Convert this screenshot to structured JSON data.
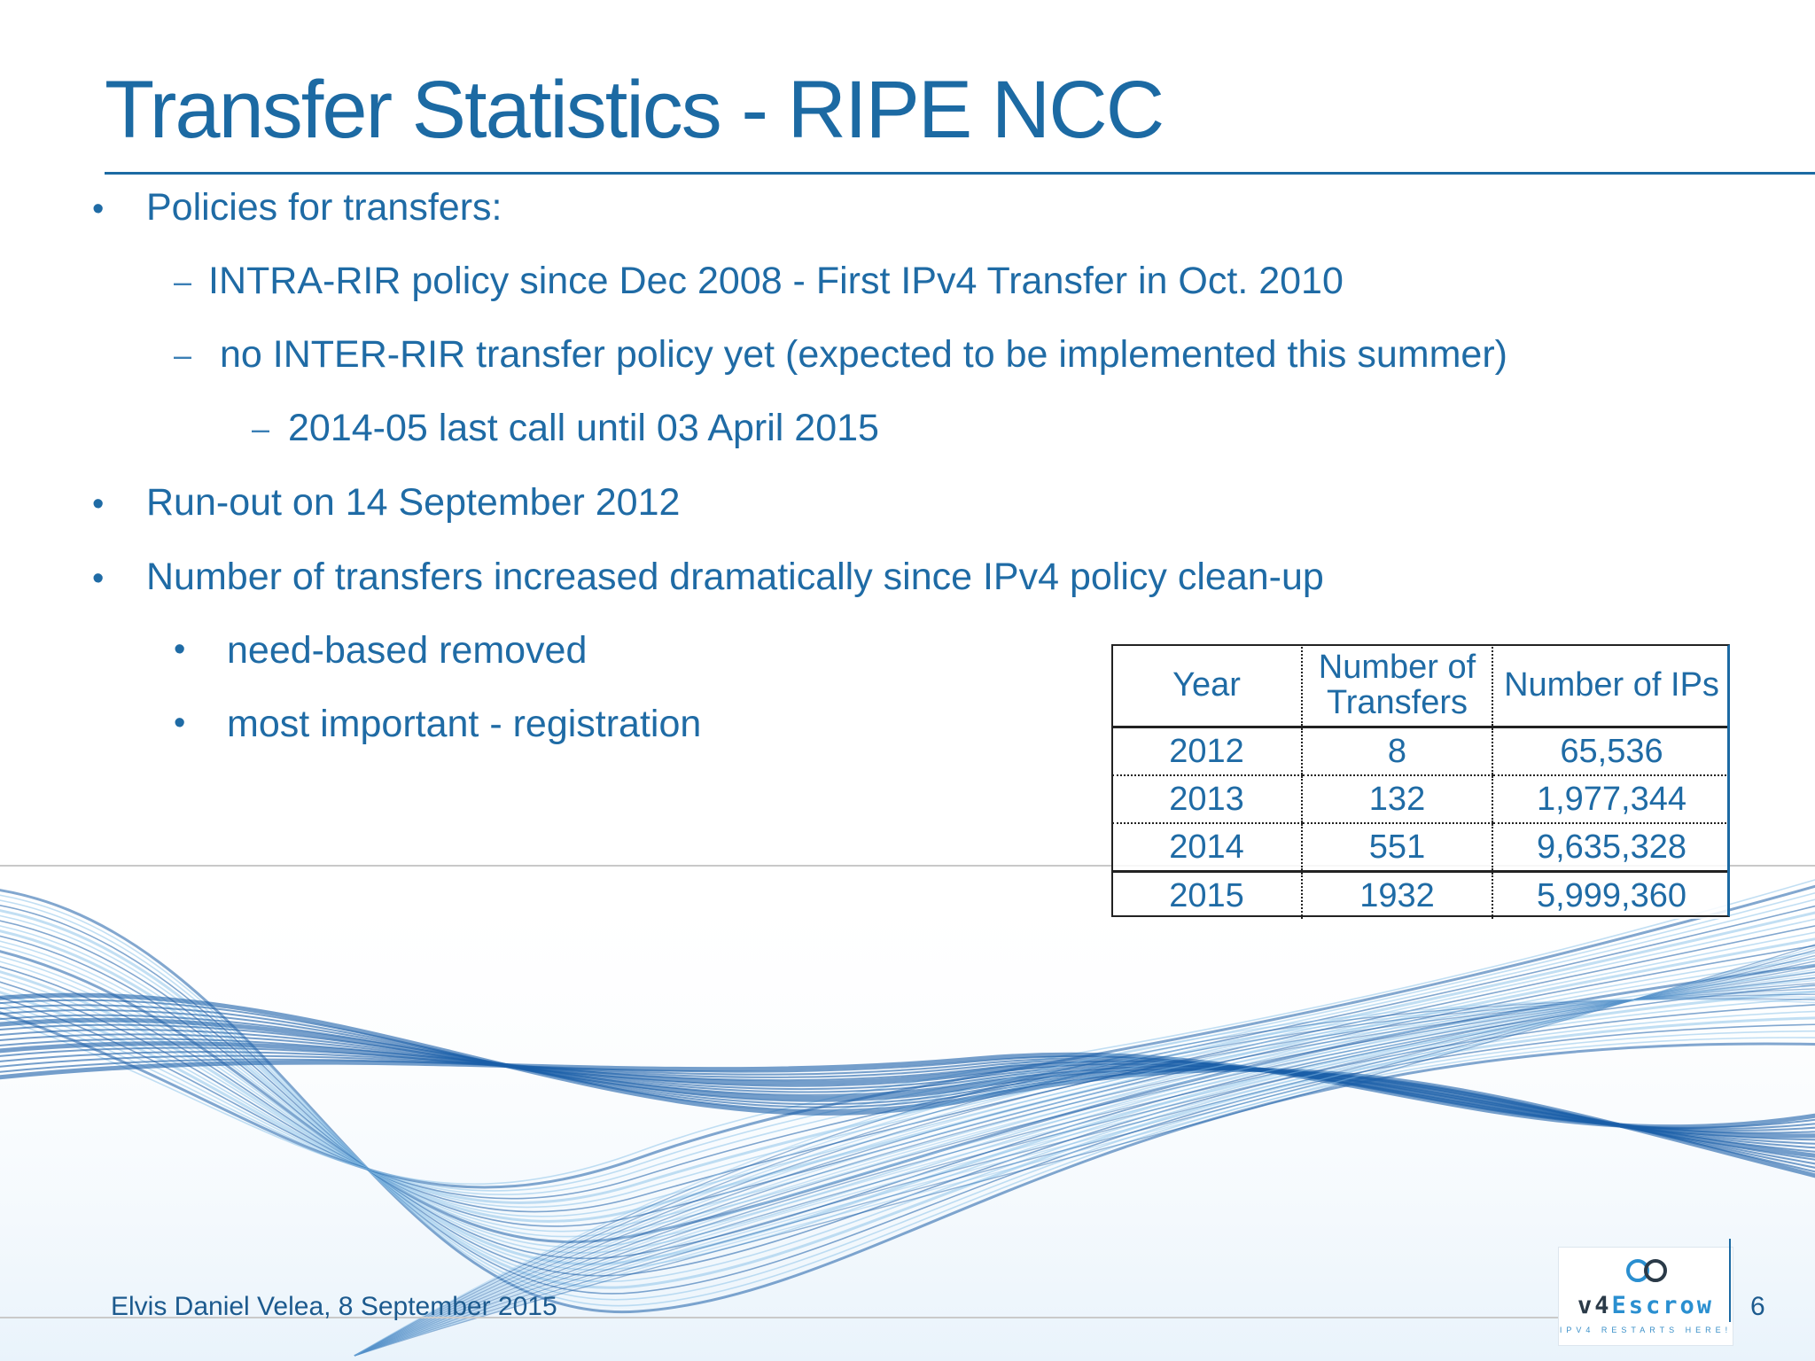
{
  "slide": {
    "title": "Transfer Statistics - RIPE NCC",
    "bullets": [
      {
        "marker": "•",
        "text": "Policies for transfers:"
      },
      {
        "marker": "–",
        "text": "INTRA-RIR policy since Dec 2008 - First IPv4 Transfer in Oct. 2010"
      },
      {
        "marker": "–",
        "text": "no INTER-RIR transfer policy yet (expected to be implemented this summer)"
      },
      {
        "marker": "–",
        "text": "2014-05 last call until 03 April 2015"
      },
      {
        "marker": "•",
        "text": "Run-out on 14 September 2012"
      },
      {
        "marker": "•",
        "text": "Number of transfers increased dramatically since IPv4 policy clean-up"
      },
      {
        "marker": "•",
        "text": "need-based removed"
      },
      {
        "marker": "•",
        "text": "most important - registration"
      }
    ],
    "table": {
      "headers": [
        "Year",
        "Number of Transfers",
        "Number of IPs"
      ],
      "rows": [
        [
          "2012",
          "8",
          "65,536"
        ],
        [
          "2013",
          "132",
          "1,977,344"
        ],
        [
          "2014",
          "551",
          "9,635,328"
        ],
        [
          "2015",
          "1932",
          "5,999,360"
        ]
      ]
    },
    "footer": "Elvis Daniel Velea, 8 September 2015",
    "page_number": "6",
    "logo": {
      "prefix": "v4",
      "name": "Escrow",
      "tagline": "IPV4 RESTARTS HERE!"
    },
    "colors": {
      "accent": "#1c6aa3",
      "text": "#1f6ba5",
      "wave_dark": "#1b5fa8",
      "wave_light": "#8fc4ea"
    }
  }
}
